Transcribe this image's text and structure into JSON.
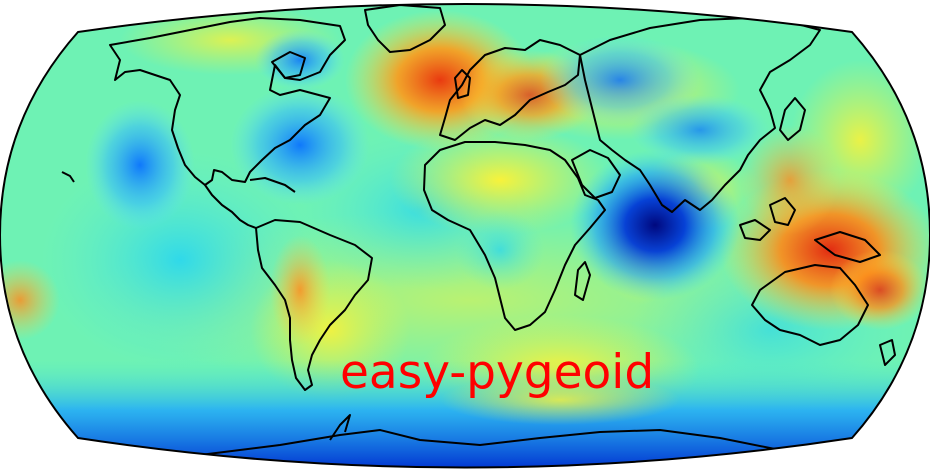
{
  "map": {
    "title": "easy-pygeoid",
    "projection": "robinson",
    "colormap": "jet",
    "colors": {
      "title": "#ff0000",
      "coastline": "#000000",
      "border": "#000000"
    }
  }
}
